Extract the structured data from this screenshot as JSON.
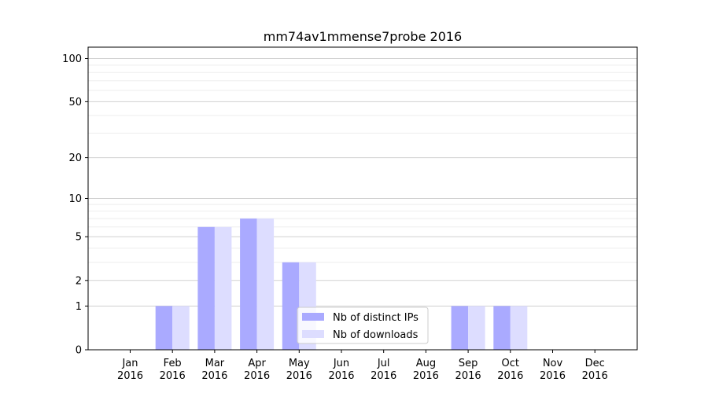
{
  "chart_data": {
    "type": "bar",
    "title": "mm74av1mmense7probe 2016",
    "xlabel": "",
    "ylabel": "",
    "yscale": "symlog",
    "ylim": [
      0,
      120
    ],
    "yticks": [
      0,
      1,
      2,
      5,
      10,
      20,
      50,
      100
    ],
    "categories": [
      [
        "Jan",
        "2016"
      ],
      [
        "Feb",
        "2016"
      ],
      [
        "Mar",
        "2016"
      ],
      [
        "Apr",
        "2016"
      ],
      [
        "May",
        "2016"
      ],
      [
        "Jun",
        "2016"
      ],
      [
        "Jul",
        "2016"
      ],
      [
        "Aug",
        "2016"
      ],
      [
        "Sep",
        "2016"
      ],
      [
        "Oct",
        "2016"
      ],
      [
        "Nov",
        "2016"
      ],
      [
        "Dec",
        "2016"
      ]
    ],
    "series": [
      {
        "name": "Nb of distinct IPs",
        "color": "#aaaaff",
        "values": [
          0,
          1,
          6,
          7,
          3,
          0,
          0,
          0,
          1,
          1,
          0,
          0
        ]
      },
      {
        "name": "Nb of downloads",
        "color": "#ddddff",
        "values": [
          0,
          1,
          6,
          7,
          3,
          0,
          0,
          0,
          1,
          1,
          0,
          0
        ]
      }
    ],
    "grid": true,
    "legend_position": "bottom-center"
  }
}
